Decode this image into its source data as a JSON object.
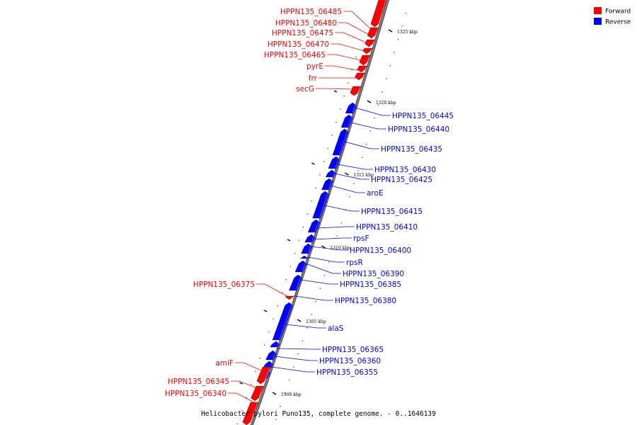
{
  "caption": "Helicobacter pylori Puno135, complete genome. - 0..1646139",
  "legend": [
    {
      "label": "Forward",
      "color": "#ff0000"
    },
    {
      "label": "Reverse",
      "color": "#0000ff"
    }
  ],
  "colors": {
    "forward": "#ff0000",
    "reverse": "#0000ff",
    "backbone": "#808080"
  },
  "scale_ticks": [
    "1325 kbp",
    "1320 kbp",
    "1315 kbp",
    "1310 kbp",
    "1305 kbp",
    "1300 kbp"
  ],
  "genes": [
    {
      "name": "HPPN135_06485",
      "strand": "forward"
    },
    {
      "name": "HPPN135_06480",
      "strand": "forward"
    },
    {
      "name": "HPPN135_06475",
      "strand": "forward"
    },
    {
      "name": "HPPN135_06470",
      "strand": "forward"
    },
    {
      "name": "HPPN135_06465",
      "strand": "forward"
    },
    {
      "name": "pyrE",
      "strand": "forward"
    },
    {
      "name": "frr",
      "strand": "forward"
    },
    {
      "name": "secG",
      "strand": "forward"
    },
    {
      "name": "HPPN135_06445",
      "strand": "reverse"
    },
    {
      "name": "HPPN135_06440",
      "strand": "reverse"
    },
    {
      "name": "HPPN135_06435",
      "strand": "reverse"
    },
    {
      "name": "HPPN135_06430",
      "strand": "reverse"
    },
    {
      "name": "HPPN135_06425",
      "strand": "reverse"
    },
    {
      "name": "aroE",
      "strand": "reverse"
    },
    {
      "name": "HPPN135_06415",
      "strand": "reverse"
    },
    {
      "name": "HPPN135_06410",
      "strand": "reverse"
    },
    {
      "name": "rpsF",
      "strand": "reverse"
    },
    {
      "name": "HPPN135_06400",
      "strand": "reverse"
    },
    {
      "name": "rpsR",
      "strand": "reverse"
    },
    {
      "name": "HPPN135_06390",
      "strand": "reverse"
    },
    {
      "name": "HPPN135_06385",
      "strand": "reverse"
    },
    {
      "name": "HPPN135_06375",
      "strand": "forward"
    },
    {
      "name": "HPPN135_06380",
      "strand": "reverse"
    },
    {
      "name": "alaS",
      "strand": "reverse"
    },
    {
      "name": "HPPN135_06365",
      "strand": "reverse"
    },
    {
      "name": "HPPN135_06360",
      "strand": "reverse"
    },
    {
      "name": "HPPN135_06355",
      "strand": "reverse"
    },
    {
      "name": "amiF",
      "strand": "forward"
    },
    {
      "name": "HPPN135_06345",
      "strand": "forward"
    },
    {
      "name": "HPPN135_06340",
      "strand": "forward"
    }
  ]
}
